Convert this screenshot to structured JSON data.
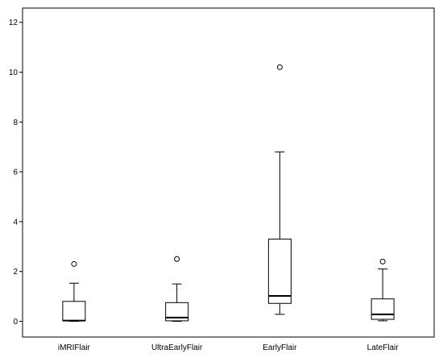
{
  "chart_data": {
    "type": "box",
    "categories": [
      "iMRIFlair",
      "UltraEarlyFlair",
      "EarlyFlair",
      "LateFlair"
    ],
    "boxes": [
      {
        "min": 0.0,
        "q1": 0.02,
        "median": 0.03,
        "q3": 0.8,
        "max": 1.53,
        "outliers": [
          2.3
        ]
      },
      {
        "min": 0.0,
        "q1": 0.02,
        "median": 0.15,
        "q3": 0.75,
        "max": 1.5,
        "outliers": [
          2.5
        ]
      },
      {
        "min": 0.28,
        "q1": 0.72,
        "median": 1.02,
        "q3": 3.3,
        "max": 6.8,
        "outliers": [
          10.2
        ]
      },
      {
        "min": 0.02,
        "q1": 0.08,
        "median": 0.28,
        "q3": 0.9,
        "max": 2.1,
        "outliers": [
          2.4
        ]
      }
    ],
    "yticks": [
      0,
      2,
      4,
      6,
      8,
      10,
      12
    ],
    "ylim": [
      -0.45,
      12.5
    ],
    "grid": false,
    "xlabel": "",
    "ylabel": "",
    "title": ""
  }
}
